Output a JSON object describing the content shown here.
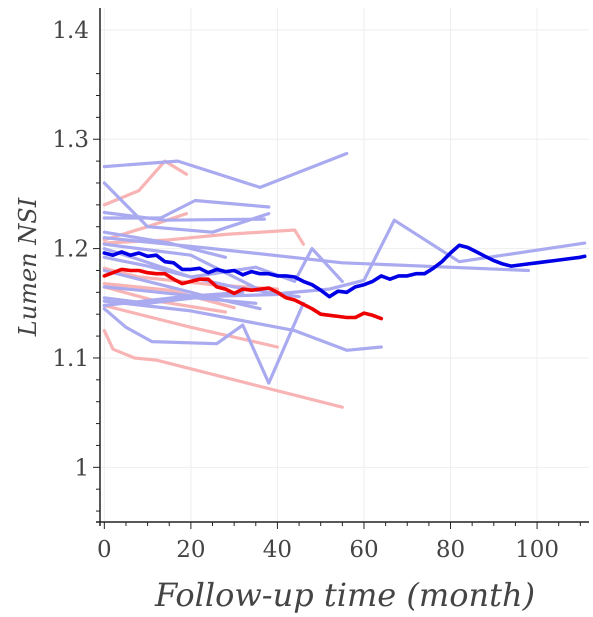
{
  "chart_data": {
    "type": "line",
    "title": "",
    "xlabel": "Follow-up time (month)",
    "ylabel": "Lumen NSI",
    "xlim": [
      -1,
      112
    ],
    "ylim": [
      0.95,
      1.42
    ],
    "x_ticks": [
      0,
      20,
      40,
      60,
      80,
      100
    ],
    "x_tick_labels": [
      "0",
      "20",
      "40",
      "60",
      "80",
      "100"
    ],
    "y_ticks": [
      1.0,
      1.1,
      1.2,
      1.3,
      1.4
    ],
    "y_tick_labels": [
      "1",
      "1.1",
      "1.2",
      "1.3",
      "1.4"
    ],
    "grid": true,
    "legend": "none",
    "colors": {
      "light_blue": "#aaaaf0",
      "light_red": "#f8b4b4",
      "blue_mean": "#0000e6",
      "red_mean": "#ee0000",
      "grid": "#eeeeee",
      "axis": "#222222",
      "text": "#444444"
    },
    "series": [
      {
        "group": "light-blue",
        "x": [
          0,
          17,
          36,
          56
        ],
        "y": [
          1.275,
          1.28,
          1.256,
          1.287
        ]
      },
      {
        "group": "light-blue",
        "x": [
          0,
          13,
          21,
          38
        ],
        "y": [
          1.228,
          1.228,
          1.244,
          1.238
        ]
      },
      {
        "group": "light-blue",
        "x": [
          0,
          10,
          25,
          38
        ],
        "y": [
          1.26,
          1.22,
          1.215,
          1.232
        ]
      },
      {
        "group": "light-blue",
        "x": [
          0,
          14,
          37
        ],
        "y": [
          1.233,
          1.226,
          1.227
        ]
      },
      {
        "group": "light-blue",
        "x": [
          0,
          20,
          38,
          52,
          60,
          67,
          82,
          111
        ],
        "y": [
          1.204,
          1.194,
          1.158,
          1.163,
          1.171,
          1.226,
          1.188,
          1.205
        ]
      },
      {
        "group": "light-blue",
        "x": [
          0,
          25,
          55,
          98
        ],
        "y": [
          1.21,
          1.2,
          1.187,
          1.18
        ]
      },
      {
        "group": "light-blue",
        "x": [
          0,
          8,
          20,
          35,
          44,
          48,
          55
        ],
        "y": [
          1.2,
          1.19,
          1.174,
          1.183,
          1.17,
          1.2,
          1.17
        ]
      },
      {
        "group": "light-blue",
        "x": [
          0,
          10,
          22,
          30,
          38,
          45
        ],
        "y": [
          1.192,
          1.184,
          1.172,
          1.165,
          1.16,
          1.156
        ]
      },
      {
        "group": "light-blue",
        "x": [
          0,
          12,
          25,
          36
        ],
        "y": [
          1.18,
          1.168,
          1.155,
          1.145
        ]
      },
      {
        "group": "light-blue",
        "x": [
          0,
          10,
          21,
          35
        ],
        "y": [
          1.155,
          1.15,
          1.155,
          1.15
        ]
      },
      {
        "group": "light-blue",
        "x": [
          0,
          18,
          32
        ],
        "y": [
          1.148,
          1.156,
          1.16
        ]
      },
      {
        "group": "light-blue",
        "x": [
          0,
          5,
          11,
          26,
          32,
          38,
          46
        ],
        "y": [
          1.145,
          1.128,
          1.115,
          1.113,
          1.13,
          1.077,
          1.15
        ]
      },
      {
        "group": "light-blue",
        "x": [
          0,
          20,
          44,
          56,
          64
        ],
        "y": [
          1.152,
          1.143,
          1.125,
          1.107,
          1.11
        ]
      },
      {
        "group": "light-blue",
        "x": [
          0,
          8,
          22,
          40
        ],
        "y": [
          1.165,
          1.162,
          1.156,
          1.158
        ]
      },
      {
        "group": "light-blue",
        "x": [
          0,
          15,
          28
        ],
        "y": [
          1.215,
          1.205,
          1.192
        ]
      },
      {
        "group": "light-red",
        "x": [
          0,
          8,
          14,
          19
        ],
        "y": [
          1.24,
          1.253,
          1.28,
          1.268
        ]
      },
      {
        "group": "light-red",
        "x": [
          0,
          10,
          19
        ],
        "y": [
          1.208,
          1.22,
          1.232
        ]
      },
      {
        "group": "light-red",
        "x": [
          0,
          15,
          28,
          44,
          46
        ],
        "y": [
          1.205,
          1.208,
          1.213,
          1.217,
          1.204
        ]
      },
      {
        "group": "light-red",
        "x": [
          0,
          8,
          25,
          40
        ],
        "y": [
          1.182,
          1.174,
          1.167,
          1.163
        ]
      },
      {
        "group": "light-red",
        "x": [
          0,
          15,
          30
        ],
        "y": [
          1.168,
          1.162,
          1.146
        ]
      },
      {
        "group": "light-red",
        "x": [
          0,
          20,
          40
        ],
        "y": [
          1.148,
          1.128,
          1.11
        ]
      },
      {
        "group": "light-red",
        "x": [
          0,
          2,
          7,
          12,
          55
        ],
        "y": [
          1.125,
          1.108,
          1.1,
          1.098,
          1.055
        ]
      },
      {
        "group": "light-red",
        "x": [
          0,
          12,
          28
        ],
        "y": [
          1.165,
          1.152,
          1.142
        ]
      },
      {
        "group": "blue-mean",
        "x": [
          0,
          2,
          4,
          6,
          8,
          10,
          12,
          14,
          16,
          18,
          20,
          22,
          24,
          26,
          28,
          30,
          32,
          34,
          36,
          38,
          40,
          42,
          44,
          46,
          48,
          50,
          52,
          54,
          56,
          58,
          60,
          62,
          64,
          66,
          68,
          70,
          72,
          74,
          76,
          78,
          80,
          82,
          84,
          86,
          88,
          90,
          92,
          94,
          96,
          98,
          100,
          102,
          104,
          106,
          108,
          110,
          111
        ],
        "y": [
          1.196,
          1.194,
          1.197,
          1.194,
          1.196,
          1.193,
          1.194,
          1.188,
          1.187,
          1.181,
          1.181,
          1.182,
          1.178,
          1.181,
          1.179,
          1.18,
          1.176,
          1.179,
          1.177,
          1.177,
          1.175,
          1.175,
          1.174,
          1.17,
          1.167,
          1.162,
          1.156,
          1.161,
          1.16,
          1.165,
          1.167,
          1.17,
          1.175,
          1.172,
          1.175,
          1.175,
          1.177,
          1.177,
          1.182,
          1.188,
          1.196,
          1.203,
          1.201,
          1.197,
          1.193,
          1.189,
          1.186,
          1.184,
          1.185,
          1.186,
          1.187,
          1.188,
          1.189,
          1.19,
          1.191,
          1.192,
          1.193
        ]
      },
      {
        "group": "red-mean",
        "x": [
          0,
          2,
          4,
          6,
          8,
          10,
          12,
          14,
          16,
          18,
          20,
          22,
          24,
          26,
          28,
          30,
          32,
          34,
          36,
          38,
          40,
          42,
          44,
          46,
          48,
          50,
          52,
          54,
          56,
          58,
          60,
          62,
          64
        ],
        "y": [
          1.175,
          1.178,
          1.181,
          1.18,
          1.18,
          1.178,
          1.177,
          1.177,
          1.172,
          1.168,
          1.17,
          1.172,
          1.172,
          1.165,
          1.163,
          1.159,
          1.163,
          1.162,
          1.163,
          1.164,
          1.16,
          1.155,
          1.153,
          1.149,
          1.145,
          1.14,
          1.139,
          1.138,
          1.137,
          1.137,
          1.141,
          1.139,
          1.136
        ]
      }
    ]
  }
}
